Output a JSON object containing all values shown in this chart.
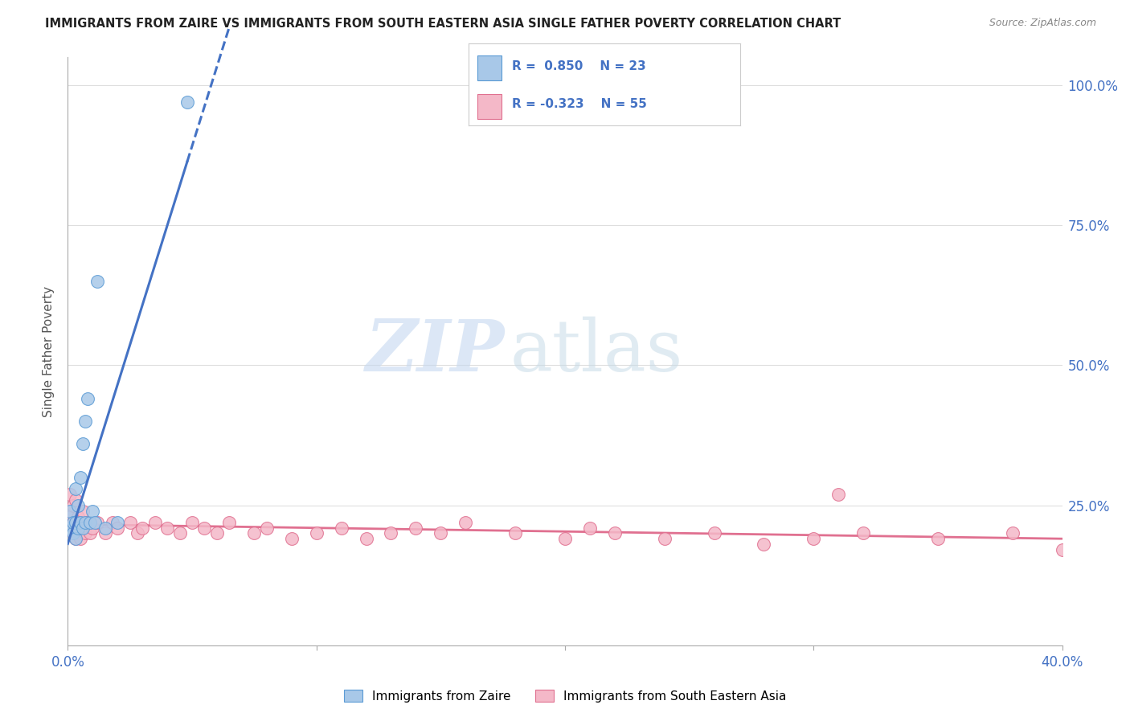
{
  "title": "IMMIGRANTS FROM ZAIRE VS IMMIGRANTS FROM SOUTH EASTERN ASIA SINGLE FATHER POVERTY CORRELATION CHART",
  "source": "Source: ZipAtlas.com",
  "ylabel": "Single Father Poverty",
  "right_yticks": [
    "100.0%",
    "75.0%",
    "50.0%",
    "25.0%"
  ],
  "right_ytick_vals": [
    1.0,
    0.75,
    0.5,
    0.25
  ],
  "xlim": [
    0.0,
    0.4
  ],
  "ylim": [
    0.0,
    1.05
  ],
  "zaire_color": "#a8c8e8",
  "zaire_edge": "#5b9bd5",
  "sea_color": "#f4b8c8",
  "sea_edge": "#e07090",
  "line_blue": "#4472c4",
  "line_pink": "#e07090",
  "legend_label_zaire": "Immigrants from Zaire",
  "legend_label_sea": "Immigrants from South Eastern Asia",
  "R_zaire": "0.850",
  "N_zaire": "23",
  "R_sea": "-0.323",
  "N_sea": "55",
  "zaire_x": [
    0.001,
    0.001,
    0.002,
    0.002,
    0.003,
    0.003,
    0.003,
    0.004,
    0.004,
    0.005,
    0.005,
    0.006,
    0.006,
    0.007,
    0.007,
    0.008,
    0.009,
    0.01,
    0.011,
    0.012,
    0.015,
    0.02,
    0.048
  ],
  "zaire_y": [
    0.21,
    0.24,
    0.2,
    0.22,
    0.19,
    0.22,
    0.28,
    0.21,
    0.25,
    0.22,
    0.3,
    0.21,
    0.36,
    0.22,
    0.4,
    0.44,
    0.22,
    0.24,
    0.22,
    0.65,
    0.21,
    0.22,
    0.97
  ],
  "sea_x": [
    0.001,
    0.001,
    0.002,
    0.002,
    0.002,
    0.003,
    0.003,
    0.003,
    0.004,
    0.004,
    0.005,
    0.005,
    0.006,
    0.006,
    0.007,
    0.008,
    0.009,
    0.01,
    0.012,
    0.015,
    0.018,
    0.02,
    0.025,
    0.028,
    0.03,
    0.035,
    0.04,
    0.045,
    0.05,
    0.055,
    0.06,
    0.065,
    0.075,
    0.08,
    0.09,
    0.1,
    0.11,
    0.12,
    0.13,
    0.14,
    0.15,
    0.16,
    0.18,
    0.2,
    0.21,
    0.22,
    0.24,
    0.26,
    0.28,
    0.3,
    0.31,
    0.32,
    0.35,
    0.38,
    0.4
  ],
  "sea_y": [
    0.23,
    0.27,
    0.2,
    0.22,
    0.25,
    0.19,
    0.22,
    0.26,
    0.2,
    0.23,
    0.19,
    0.22,
    0.21,
    0.24,
    0.2,
    0.22,
    0.2,
    0.21,
    0.22,
    0.2,
    0.22,
    0.21,
    0.22,
    0.2,
    0.21,
    0.22,
    0.21,
    0.2,
    0.22,
    0.21,
    0.2,
    0.22,
    0.2,
    0.21,
    0.19,
    0.2,
    0.21,
    0.19,
    0.2,
    0.21,
    0.2,
    0.22,
    0.2,
    0.19,
    0.21,
    0.2,
    0.19,
    0.2,
    0.18,
    0.19,
    0.27,
    0.2,
    0.19,
    0.2,
    0.17
  ],
  "watermark_zip": "ZIP",
  "watermark_atlas": "atlas",
  "background_color": "#ffffff",
  "grid_color": "#dedede"
}
